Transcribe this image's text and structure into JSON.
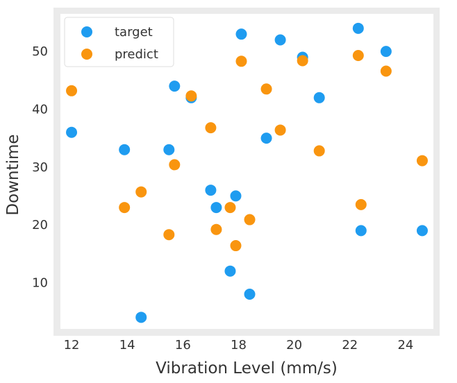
{
  "chart_data": {
    "type": "scatter",
    "xlabel": "Vibration Level (mm/s)",
    "ylabel": "Downtime",
    "xlim": [
      11.6,
      25.0
    ],
    "ylim": [
      2.0,
      56.5
    ],
    "xticks": [
      12,
      14,
      16,
      18,
      20,
      22,
      24
    ],
    "yticks": [
      10,
      20,
      30,
      40,
      50
    ],
    "grid": false,
    "legend_position": "top-left",
    "colors": {
      "plot_bg": "#ffffff",
      "frame": "#ebebeb",
      "target": "#1f9cf0",
      "predict": "#f9950f"
    },
    "series": [
      {
        "name": "target",
        "color": "#1f9cf0",
        "points": [
          [
            12.0,
            36
          ],
          [
            13.9,
            33
          ],
          [
            14.5,
            4
          ],
          [
            15.5,
            33
          ],
          [
            15.7,
            44
          ],
          [
            16.3,
            42
          ],
          [
            17.0,
            26
          ],
          [
            17.2,
            23
          ],
          [
            17.7,
            12
          ],
          [
            17.9,
            25
          ],
          [
            18.1,
            53
          ],
          [
            18.4,
            8
          ],
          [
            19.0,
            35
          ],
          [
            19.5,
            52
          ],
          [
            20.3,
            49
          ],
          [
            20.9,
            42
          ],
          [
            22.3,
            54
          ],
          [
            22.4,
            19
          ],
          [
            23.3,
            50
          ],
          [
            24.6,
            19
          ]
        ]
      },
      {
        "name": "predict",
        "color": "#f9950f",
        "points": [
          [
            12.0,
            43.2
          ],
          [
            13.9,
            23
          ],
          [
            14.5,
            25.7
          ],
          [
            15.5,
            18.3
          ],
          [
            15.7,
            30.4
          ],
          [
            16.3,
            42.3
          ],
          [
            17.0,
            36.8
          ],
          [
            17.2,
            19.2
          ],
          [
            17.7,
            23
          ],
          [
            17.9,
            16.4
          ],
          [
            18.1,
            48.3
          ],
          [
            18.4,
            20.9
          ],
          [
            19.0,
            43.5
          ],
          [
            19.5,
            36.4
          ],
          [
            20.3,
            48.4
          ],
          [
            20.9,
            32.8
          ],
          [
            22.3,
            49.3
          ],
          [
            22.4,
            23.5
          ],
          [
            23.3,
            46.6
          ],
          [
            24.6,
            31.1
          ]
        ]
      }
    ]
  }
}
